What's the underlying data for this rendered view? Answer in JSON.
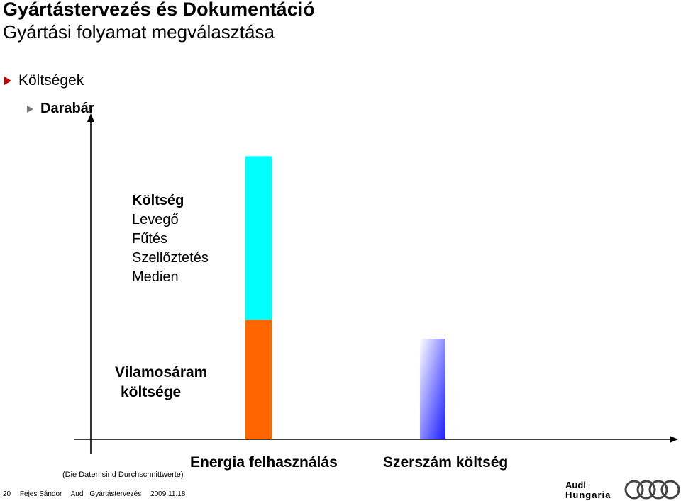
{
  "header": {
    "title": "Gyártástervezés és Dokumentáció",
    "subtitle": "Gyártási folyamat megválasztása"
  },
  "bullets": {
    "level1": "Költségek",
    "level2": "Darabár"
  },
  "chart_data": {
    "type": "bar",
    "categories": [
      "Energia felhasználás",
      "Szerszám költség"
    ],
    "stacks": [
      {
        "category": "Energia felhasználás",
        "segments": [
          {
            "label": "Vilamosáram költsége",
            "value": 0.38,
            "color": "#ff6600"
          },
          {
            "label": "Költség Levegő Fűtés Szellőztetés Medien",
            "value": 0.52,
            "color": "#00ffff"
          }
        ]
      },
      {
        "category": "Szerszám költség",
        "segments": [
          {
            "label": "",
            "value": 0.32,
            "color": "#2020ff"
          }
        ]
      }
    ],
    "ylim": [
      0,
      1
    ],
    "grid": false,
    "xlabel": "",
    "ylabel": ""
  },
  "labels": {
    "upper_title": "Költség",
    "upper_lines": [
      "Levegő",
      "Fűtés",
      "Szellőztetés",
      "Medien"
    ],
    "lower_line1": "Vilamosáram",
    "lower_line2": "költsége",
    "note": "(Die Daten sind Durchschnittwerte)"
  },
  "footer": {
    "page_number": "20",
    "author": "Fejes Sándor",
    "company": "Audi",
    "course": "Gyártástervezés",
    "date": "2009.11.18"
  },
  "logo": {
    "line1": "Audi",
    "line2": "Hungaria"
  },
  "colors": {
    "bullet_red": "#c00000",
    "energy_bottom": "#ff6600",
    "energy_top": "#00ffff",
    "tool_cost": "#2020ff"
  }
}
